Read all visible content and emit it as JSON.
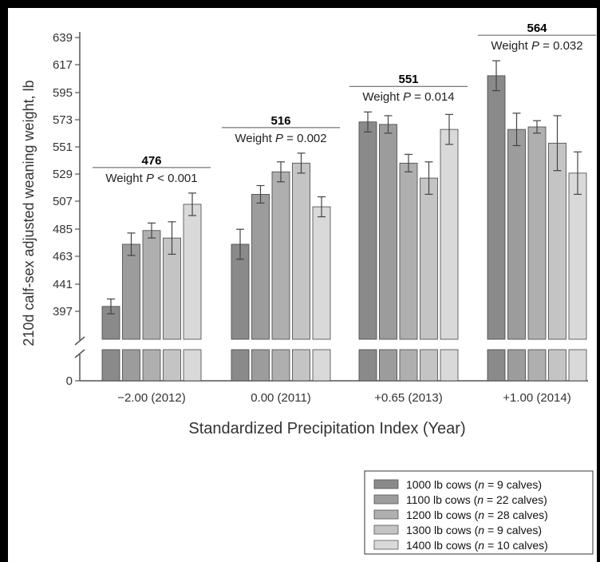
{
  "chart_data": {
    "type": "bar",
    "xlabel": "Standardized Precipitation Index (Year)",
    "ylabel": "210d calf-sex adjusted weaning weight, lb",
    "y_ticks": [
      "639",
      "617",
      "595",
      "573",
      "551",
      "529",
      "507",
      "485",
      "463",
      "441",
      "397"
    ],
    "y_zero_tick": "0",
    "categories": [
      "−2.00 (2012)",
      "0.00 (2011)",
      "+0.65 (2013)",
      "+1.00 (2014)"
    ],
    "group_means": [
      "476",
      "516",
      "551",
      "564"
    ],
    "group_p_labels": [
      {
        "prefix": "Weight ",
        "p": "P",
        "suffix": " < 0.001"
      },
      {
        "prefix": "Weight ",
        "p": "P",
        "suffix": " = 0.002"
      },
      {
        "prefix": "Weight ",
        "p": "P",
        "suffix": " = 0.014"
      },
      {
        "prefix": "Weight ",
        "p": "P",
        "suffix": " = 0.032"
      }
    ],
    "series": [
      {
        "name": "1000 lb cows (n = 9 calves)",
        "values": [
          405,
          473,
          571,
          608
        ],
        "errors": [
          12,
          12,
          8,
          12
        ],
        "color": "#8a8a8a"
      },
      {
        "name": "1100 lb cows (n = 22 calves)",
        "values": [
          473,
          513,
          569,
          565
        ],
        "errors": [
          9,
          7,
          7,
          13
        ],
        "color": "#9c9c9c"
      },
      {
        "name": "1200 lb cows (n = 28 calves)",
        "values": [
          484,
          531,
          538,
          567
        ],
        "errors": [
          6,
          8,
          7,
          5
        ],
        "color": "#afafaf"
      },
      {
        "name": "1300 lb cows (n = 9 calves)",
        "values": [
          478,
          538,
          526,
          554
        ],
        "errors": [
          13,
          8,
          13,
          22
        ],
        "color": "#c4c4c4"
      },
      {
        "name": "1400 lb cows (n = 10 calves)",
        "values": [
          505,
          503,
          565,
          530
        ],
        "errors": [
          9,
          8,
          12,
          17
        ],
        "color": "#d9d9d9"
      }
    ],
    "legend": [
      {
        "weight": "1000 lb",
        "rest": " cows (",
        "n": "n",
        "count": " = 9 calves)"
      },
      {
        "weight": "1100 lb",
        "rest": " cows (",
        "n": "n",
        "count": " = 22 calves)"
      },
      {
        "weight": "1200 lb",
        "rest": " cows (",
        "n": "n",
        "count": " = 28 calves)"
      },
      {
        "weight": "1300 lb",
        "rest": " cows (",
        "n": "n",
        "count": " = 9 calves)"
      },
      {
        "weight": "1400 lb",
        "rest": " cows (",
        "n": "n",
        "count": " = 10 calves)"
      }
    ],
    "legend_placement": "bottom-right",
    "axis_break": true,
    "grid": false
  }
}
